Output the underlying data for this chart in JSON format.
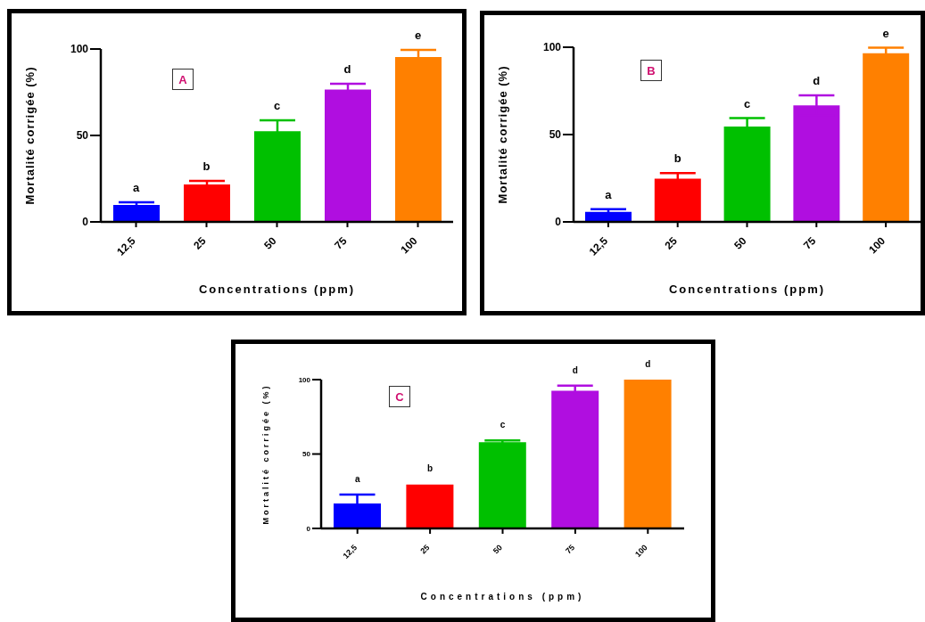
{
  "chart_data": [
    {
      "type": "bar",
      "xlabel": "Concentrations (ppm)",
      "ylabel": "Mortalité corrigée (%)",
      "categories": [
        "12,5",
        "25",
        "50",
        "75",
        "100"
      ],
      "values": [
        9.8,
        21.7,
        52.5,
        76.6,
        95.3
      ],
      "colors": [
        "#0000ff",
        "#ff0000",
        "#00c000",
        "#b00ee0",
        "#ff8000"
      ],
      "errors": [
        1.6,
        2.0,
        6.3,
        3.3,
        4.2
      ],
      "ylim": [
        0,
        100
      ],
      "yticks": [
        0,
        50,
        100
      ],
      "grid": false,
      "legend": false,
      "annotations": [
        "A",
        {
          "text": "a",
          "x": "12,5",
          "y": 11.4
        },
        {
          "text": "b",
          "x": "25",
          "y": 23.7
        },
        {
          "text": "c",
          "x": "50",
          "y": 58.8
        },
        {
          "text": "d",
          "x": "75",
          "y": 79.9
        },
        {
          "text": "e",
          "x": "100",
          "y": 99.5
        }
      ]
    },
    {
      "type": "bar",
      "xlabel": "Concentrations (ppm)",
      "ylabel": "Mortalité corrigée (%)",
      "categories": [
        "12,5",
        "25",
        "50",
        "75",
        "100"
      ],
      "values": [
        5.7,
        24.8,
        54.6,
        66.7,
        96.6
      ],
      "colors": [
        "#0000ff",
        "#ff0000",
        "#00c000",
        "#b00ee0",
        "#ff8000"
      ],
      "errors": [
        1.6,
        3.1,
        4.8,
        5.7,
        3.1
      ],
      "ylim": [
        0,
        100
      ],
      "yticks": [
        0,
        50,
        100
      ],
      "grid": false,
      "legend": false,
      "annotations": [
        "B",
        {
          "text": "a",
          "x": "12,5",
          "y": 7.3
        },
        {
          "text": "b",
          "x": "25",
          "y": 27.9
        },
        {
          "text": "c",
          "x": "50",
          "y": 59.4
        },
        {
          "text": "d",
          "x": "75",
          "y": 72.4
        },
        {
          "text": "e",
          "x": "100",
          "y": 99.7
        }
      ]
    },
    {
      "type": "bar",
      "xlabel": "Concentrations (ppm)",
      "ylabel": "Mortalité corrigée (%)",
      "categories": [
        "12,5",
        "25",
        "50",
        "75",
        "100"
      ],
      "values": [
        16.8,
        29.5,
        58.0,
        92.5,
        100
      ],
      "colors": [
        "#0000ff",
        "#ff0000",
        "#00c000",
        "#b00ee0",
        "#ff8000"
      ],
      "errors": [
        6.0,
        null,
        1.1,
        3.4,
        null
      ],
      "ylim": [
        0,
        100
      ],
      "yticks": [
        0,
        50,
        100
      ],
      "grid": false,
      "legend": false,
      "annotations": [
        "C",
        {
          "text": "a",
          "x": "12,5",
          "y": 22.8
        },
        {
          "text": "b",
          "x": "25",
          "y": 29.8
        },
        {
          "text": "c",
          "x": "50",
          "y": 59.1
        },
        {
          "text": "d",
          "x": "75",
          "y": 95.9
        },
        {
          "text": "d",
          "x": "100",
          "y": 100
        }
      ]
    }
  ]
}
